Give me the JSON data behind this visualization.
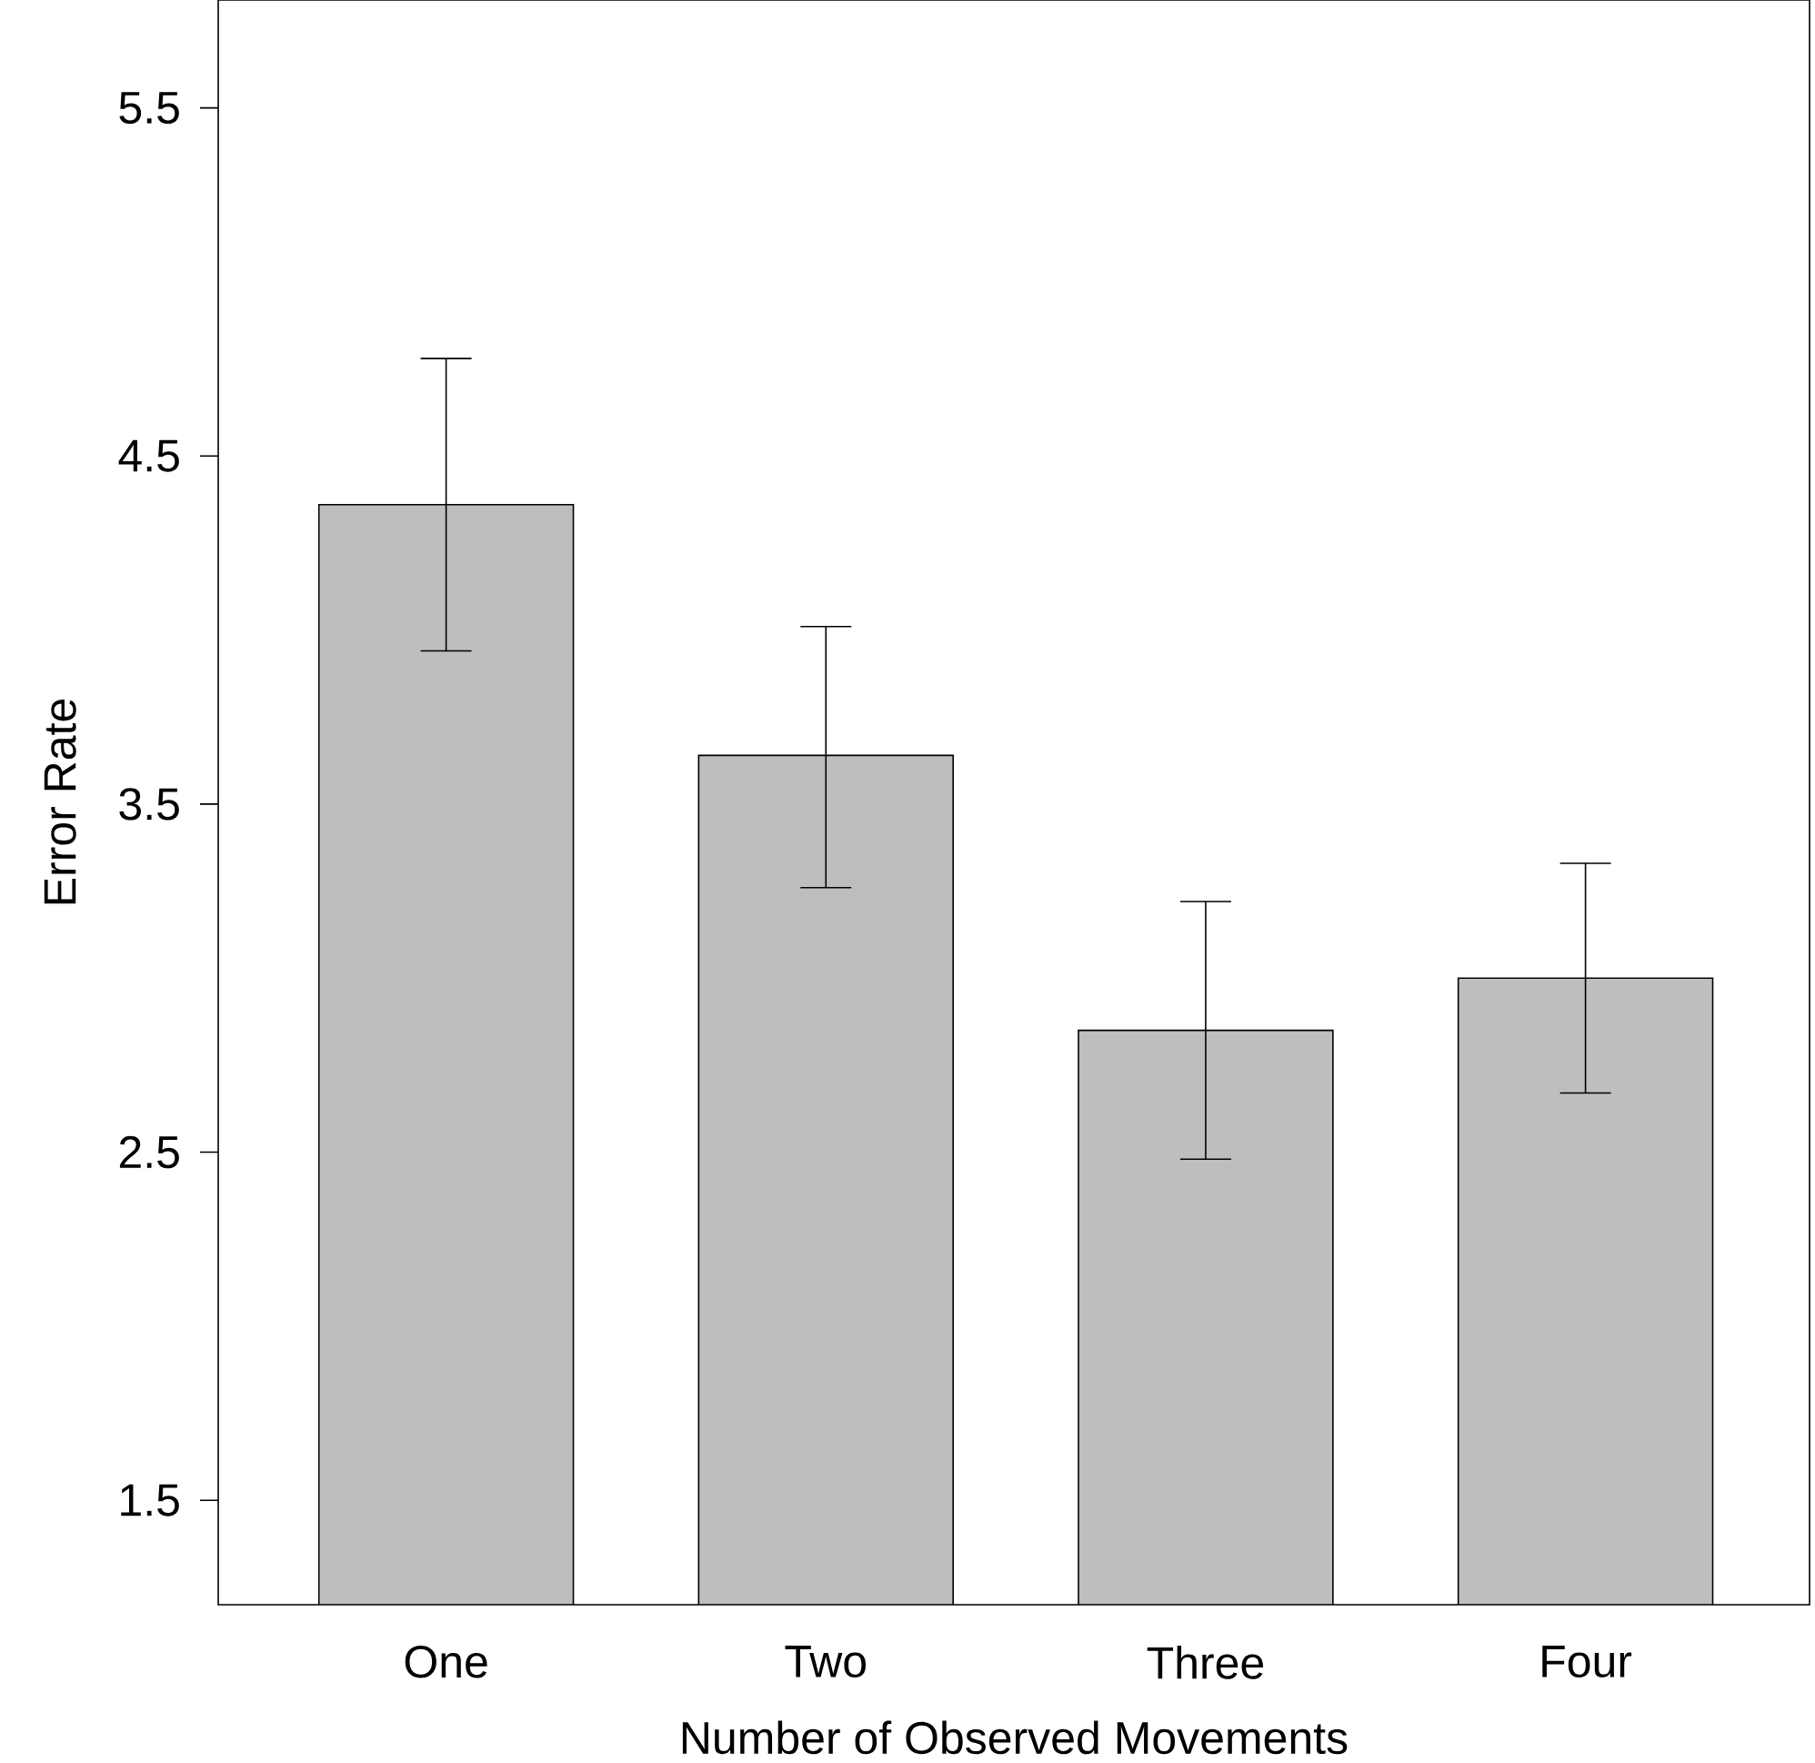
{
  "chart_data": {
    "type": "bar",
    "xlabel": "Number of Observed Movements",
    "ylabel": "Error Rate",
    "categories": [
      "One",
      "Two",
      "Three",
      "Four"
    ],
    "values": [
      4.36,
      3.64,
      2.85,
      3.0
    ],
    "errors": [
      [
        3.94,
        4.78
      ],
      [
        3.26,
        4.01
      ],
      [
        2.48,
        3.22
      ],
      [
        2.67,
        3.33
      ]
    ],
    "color": "#bebebe",
    "ylim": [
      1.2,
      5.81
    ],
    "yticks": [
      1.5,
      2.5,
      3.5,
      4.5,
      5.5
    ],
    "grid": false
  }
}
